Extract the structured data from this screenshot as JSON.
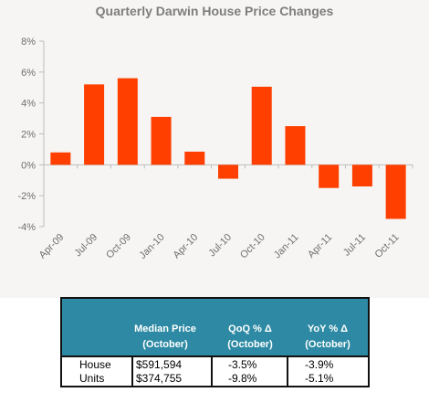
{
  "chart_data": {
    "type": "bar",
    "title": "Quarterly Darwin House Price Changes",
    "categories": [
      "Apr-09",
      "Jul-09",
      "Oct-09",
      "Jan-10",
      "Apr-10",
      "Jul-10",
      "Oct-10",
      "Jan-11",
      "Apr-11",
      "Jul-11",
      "Oct-11"
    ],
    "values": [
      0.8,
      5.2,
      5.6,
      3.1,
      0.85,
      -0.9,
      5.05,
      2.5,
      -1.5,
      -1.4,
      -3.5
    ],
    "ylim": [
      -4,
      8
    ],
    "yticks": [
      "8%",
      "6%",
      "4%",
      "2%",
      "0%",
      "-2%",
      "-4%"
    ],
    "ytick_values": [
      8,
      6,
      4,
      2,
      0,
      -2,
      -4
    ],
    "grid": false,
    "bar_color": "#ff3f00",
    "xlabel": "",
    "ylabel": ""
  },
  "table": {
    "header_color": "#2e8aa4",
    "columns": [
      {
        "line1": "Median Price",
        "line2": "(October)"
      },
      {
        "line1": "QoQ % Δ",
        "line2": "(October)"
      },
      {
        "line1": "YoY % Δ",
        "line2": "(October)"
      }
    ],
    "rows": [
      {
        "label": "House",
        "median": "$591,594",
        "qoq": "-3.5%",
        "yoy": "-3.9%"
      },
      {
        "label": "Units",
        "median": "$374,755",
        "qoq": "-9.8%",
        "yoy": "-5.1%"
      }
    ]
  }
}
